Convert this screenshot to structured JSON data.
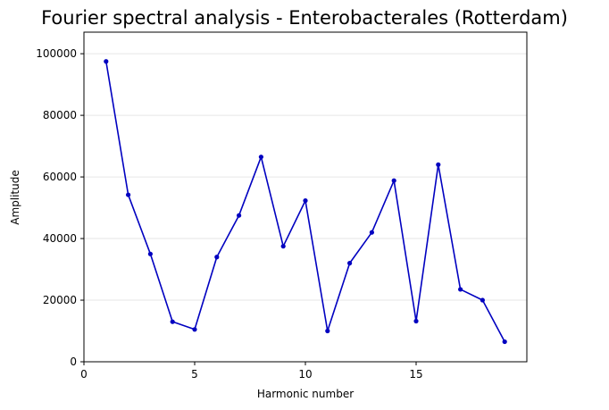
{
  "chart_data": {
    "type": "line",
    "title": "Fourier spectral analysis - Enterobacterales (Rotterdam)",
    "xlabel": "Harmonic number",
    "ylabel": "Amplitude",
    "xlim": [
      0,
      20
    ],
    "ylim": [
      0,
      107000
    ],
    "xticks": [
      0,
      5,
      10,
      15
    ],
    "yticks": [
      0,
      20000,
      40000,
      60000,
      80000,
      100000
    ],
    "grid": "horizontal",
    "series": [
      {
        "color": "#0000c0",
        "x": [
          1,
          2,
          3,
          4,
          5,
          6,
          7,
          8,
          9,
          10,
          11,
          12,
          13,
          14,
          15,
          16,
          17,
          18,
          19
        ],
        "values": [
          97500,
          54200,
          35000,
          13000,
          10500,
          34000,
          47500,
          66500,
          37500,
          52300,
          10000,
          32000,
          42000,
          58800,
          13200,
          64000,
          23500,
          20000,
          6500
        ]
      }
    ]
  }
}
